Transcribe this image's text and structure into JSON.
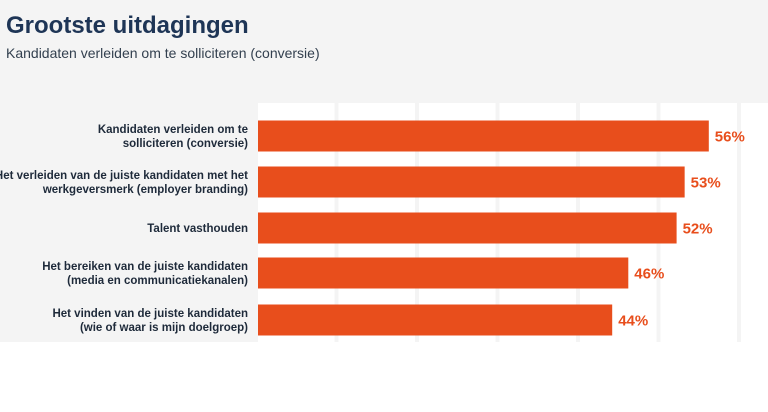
{
  "header": {
    "title": "Grootste uitdagingen",
    "subtitle": "Kandidaten verleiden om te solliciteren (conversie)"
  },
  "colors": {
    "bar": "#e84e1c",
    "value_text": "#e84e1c",
    "panel_bg": "#f4f4f4",
    "grid_band": "#ffffff"
  },
  "chart_data": {
    "type": "bar",
    "orientation": "horizontal",
    "categories": [
      [
        "Kandidaten verleiden om te",
        "solliciteren (conversie)"
      ],
      [
        "Het verleiden van de juiste kandidaten met het",
        "werkgeversmerk (employer branding)"
      ],
      [
        "Talent vasthouden"
      ],
      [
        "Het bereiken van de juiste kandidaten",
        "(media en communicatiekanalen)"
      ],
      [
        "Het vinden van de juiste kandidaten",
        "(wie of waar is mijn doelgroep)"
      ]
    ],
    "values": [
      56,
      53,
      52,
      46,
      44
    ],
    "value_labels": [
      "56%",
      "53%",
      "52%",
      "46%",
      "44%"
    ],
    "xlim": [
      0,
      70
    ],
    "grid": true
  }
}
